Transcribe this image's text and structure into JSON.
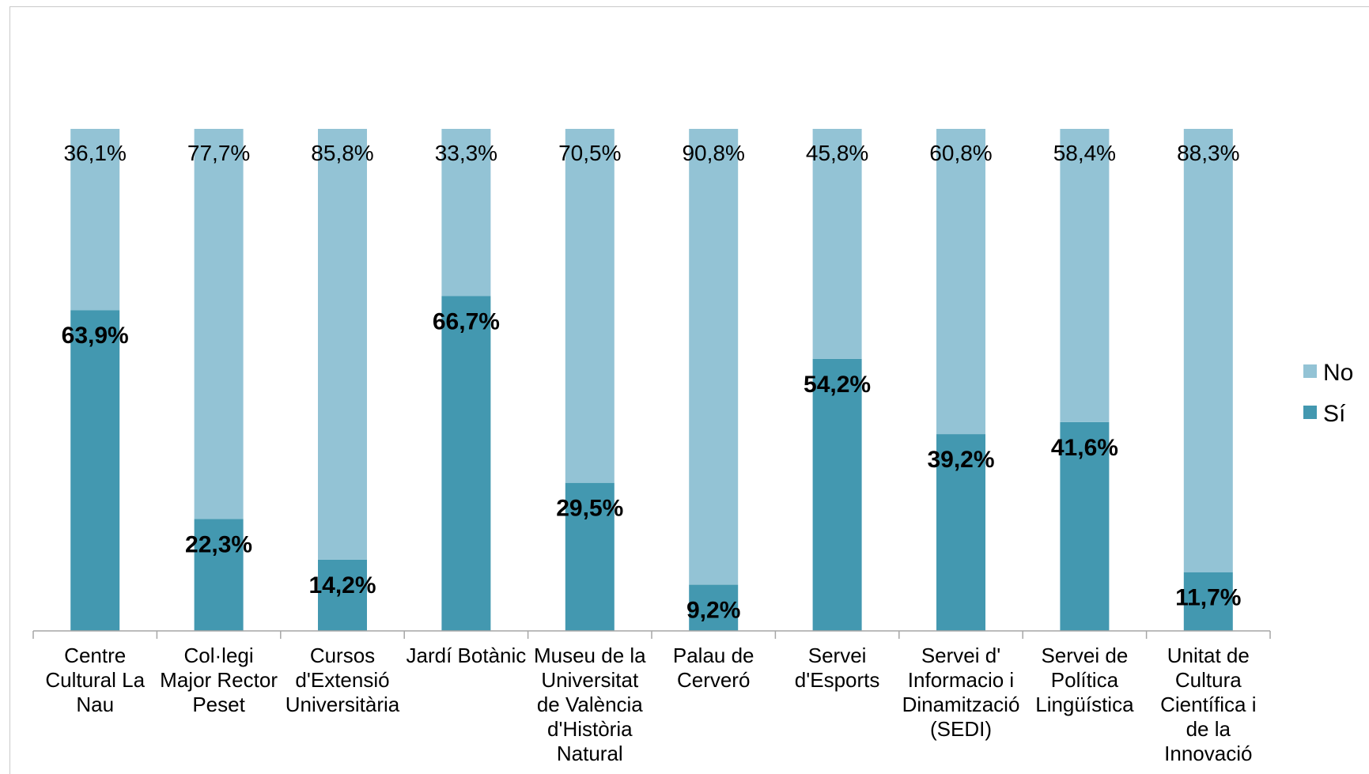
{
  "colors": {
    "no": "#93c3d5",
    "si": "#4398b0",
    "axis": "#a6a6a6"
  },
  "chart_data": {
    "type": "bar",
    "stacked": true,
    "percent": true,
    "categories": [
      "Centre Cultural La Nau",
      "Col·legi Major Rector Peset",
      "Cursos d'Extensió Universitària",
      "Jardí Botànic",
      "Museu de la Universitat de València d'Història Natural",
      "Palau de Cerveró",
      "Servei d'Esports",
      "Servei d' Informacio i Dinamització (SEDI)",
      "Servei de Política Lingüística",
      "Unitat de Cultura Científica i de la Innovació"
    ],
    "category_lines": [
      [
        "Centre",
        "Cultural La",
        "Nau"
      ],
      [
        "Col·legi",
        "Major Rector",
        "Peset"
      ],
      [
        "Cursos",
        "d'Extensió",
        "Universitària"
      ],
      [
        "Jardí Botànic"
      ],
      [
        "Museu de la",
        "Universitat",
        "de València",
        "d'Història",
        "Natural"
      ],
      [
        "Palau de",
        "Cerveró"
      ],
      [
        "Servei",
        "d'Esports"
      ],
      [
        "Servei d'",
        "Informacio i",
        "Dinamització",
        "(SEDI)"
      ],
      [
        "Servei de",
        "Política",
        "Lingüística"
      ],
      [
        "Unitat de",
        "Cultura",
        "Científica i",
        "de la",
        "Innovació"
      ]
    ],
    "series": [
      {
        "name": "Sí",
        "values": [
          63.9,
          22.3,
          14.2,
          66.7,
          29.5,
          9.2,
          54.2,
          39.2,
          41.6,
          11.7
        ],
        "labels": [
          "63,9%",
          "22,3%",
          "14,2%",
          "66,7%",
          "29,5%",
          "9,2%",
          "54,2%",
          "39,2%",
          "41,6%",
          "11,7%"
        ]
      },
      {
        "name": "No",
        "values": [
          36.1,
          77.7,
          85.8,
          33.3,
          70.5,
          90.8,
          45.8,
          60.8,
          58.4,
          88.3
        ],
        "labels": [
          "36,1%",
          "77,7%",
          "85,8%",
          "33,3%",
          "70,5%",
          "90,8%",
          "45,8%",
          "60,8%",
          "58,4%",
          "88,3%"
        ]
      }
    ],
    "ylim": [
      0,
      100
    ],
    "legend": {
      "position": "right",
      "items": [
        "No",
        "Sí"
      ]
    },
    "grid": false
  }
}
